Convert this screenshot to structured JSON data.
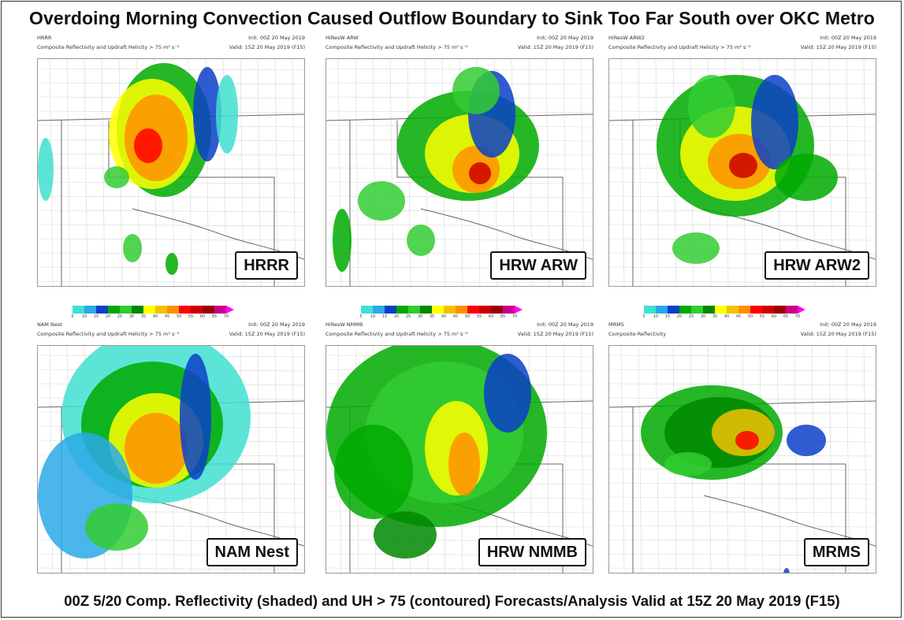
{
  "title": "Overdoing Morning Convection Caused Outflow Boundary to Sink Too Far South over OKC Metro",
  "caption": "00Z 5/20 Comp. Reflectivity (shaded) and UH > 75 (contoured) Forecasts/Analysis Valid at 15Z 20 May 2019 (F15)",
  "colorbar": {
    "ticks": [
      "5",
      "10",
      "15",
      "20",
      "25",
      "30",
      "35",
      "40",
      "45",
      "50",
      "55",
      "60",
      "65",
      "70"
    ],
    "colors": [
      "#40e0d0",
      "#2aa9e8",
      "#0a3fc8",
      "#00aa00",
      "#33cc33",
      "#008800",
      "#ffff00",
      "#f2c200",
      "#ff9000",
      "#ff0000",
      "#cc0000",
      "#990000",
      "#cc0088",
      "#ff00ff"
    ]
  },
  "panels": [
    {
      "model": "HRRR",
      "sub": "Composite Reflectivity and Updraft Helicity > 75 m² s⁻²",
      "init": "Init: 00Z 20 May 2019",
      "valid": "Valid: 15Z 20 May 2019 (F15)",
      "label": "HRRR"
    },
    {
      "model": "HiResW ARW",
      "sub": "Composite Reflectivity and Updraft Helicity > 75 m² s⁻²",
      "init": "Init: 00Z 20 May 2019",
      "valid": "Valid: 15Z 20 May 2019 (F15)",
      "label": "HRW ARW"
    },
    {
      "model": "HiResW ARW2",
      "sub": "Composite Reflectivity and Updraft Helicity > 75 m² s⁻²",
      "init": "Init: 00Z 20 May 2019",
      "valid": "Valid: 15Z 20 May 2019 (F15)",
      "label": "HRW ARW2"
    },
    {
      "model": "NAM Nest",
      "sub": "Composite Reflectivity and Updraft Helicity > 75 m² s⁻²",
      "init": "Init: 00Z 20 May 2019",
      "valid": "Valid: 15Z 20 May 2019 (F15)",
      "label": "NAM Nest"
    },
    {
      "model": "HiResW NMMB",
      "sub": "Composite Reflectivity and Updraft Helicity > 75 m² s⁻²",
      "init": "Init: 00Z 20 May 2019",
      "valid": "Valid: 15Z 20 May 2019 (F15)",
      "label": "HRW NMMB"
    },
    {
      "model": "MRMS",
      "sub": "Composite Reflectivity",
      "init": "Init: 00Z 20 May 2019",
      "valid": "Valid: 15Z 20 May 2019 (F15)",
      "label": "MRMS"
    }
  ]
}
